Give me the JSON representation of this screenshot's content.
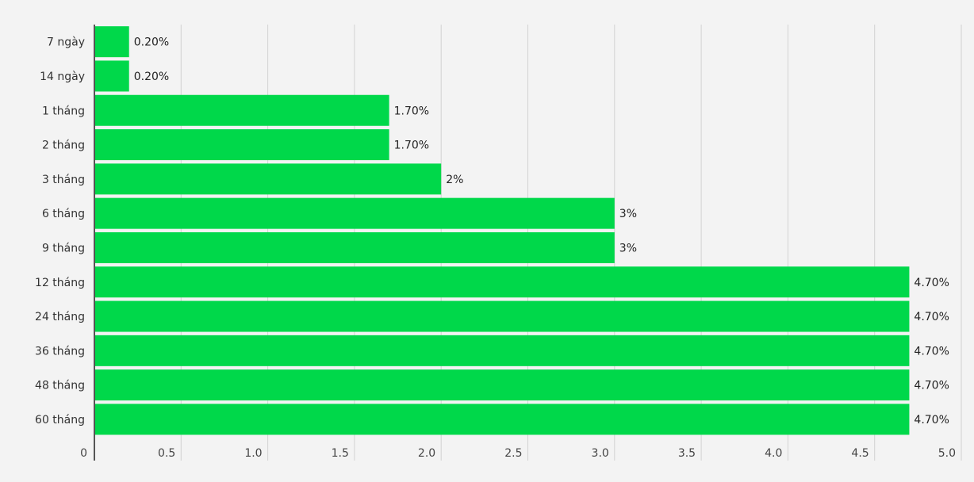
{
  "chart_data": {
    "type": "bar",
    "orientation": "horizontal",
    "categories": [
      "7 ngày",
      "14 ngày",
      "1 tháng",
      "2 tháng",
      "3 tháng",
      "6 tháng",
      "9 tháng",
      "12 tháng",
      "24 tháng",
      "36 tháng",
      "48 tháng",
      "60 tháng"
    ],
    "values": [
      0.2,
      0.2,
      1.7,
      1.7,
      2,
      3,
      3,
      4.7,
      4.7,
      4.7,
      4.7,
      4.7
    ],
    "data_labels": [
      "0.20%",
      "0.20%",
      "1.70%",
      "1.70%",
      "2%",
      "3%",
      "3%",
      "4.70%",
      "4.70%",
      "4.70%",
      "4.70%",
      "4.70%"
    ],
    "x_ticks": [
      "0",
      "0.5",
      "1.0",
      "1.5",
      "2.0",
      "2.5",
      "3.0",
      "3.5",
      "4.0",
      "4.5",
      "5.0"
    ],
    "xlim": [
      0,
      5
    ],
    "grid": true,
    "colors": {
      "bar": "#00d84a",
      "grid": "#d2d2d2",
      "axis": "#555555",
      "background": "#f3f3f3"
    }
  }
}
